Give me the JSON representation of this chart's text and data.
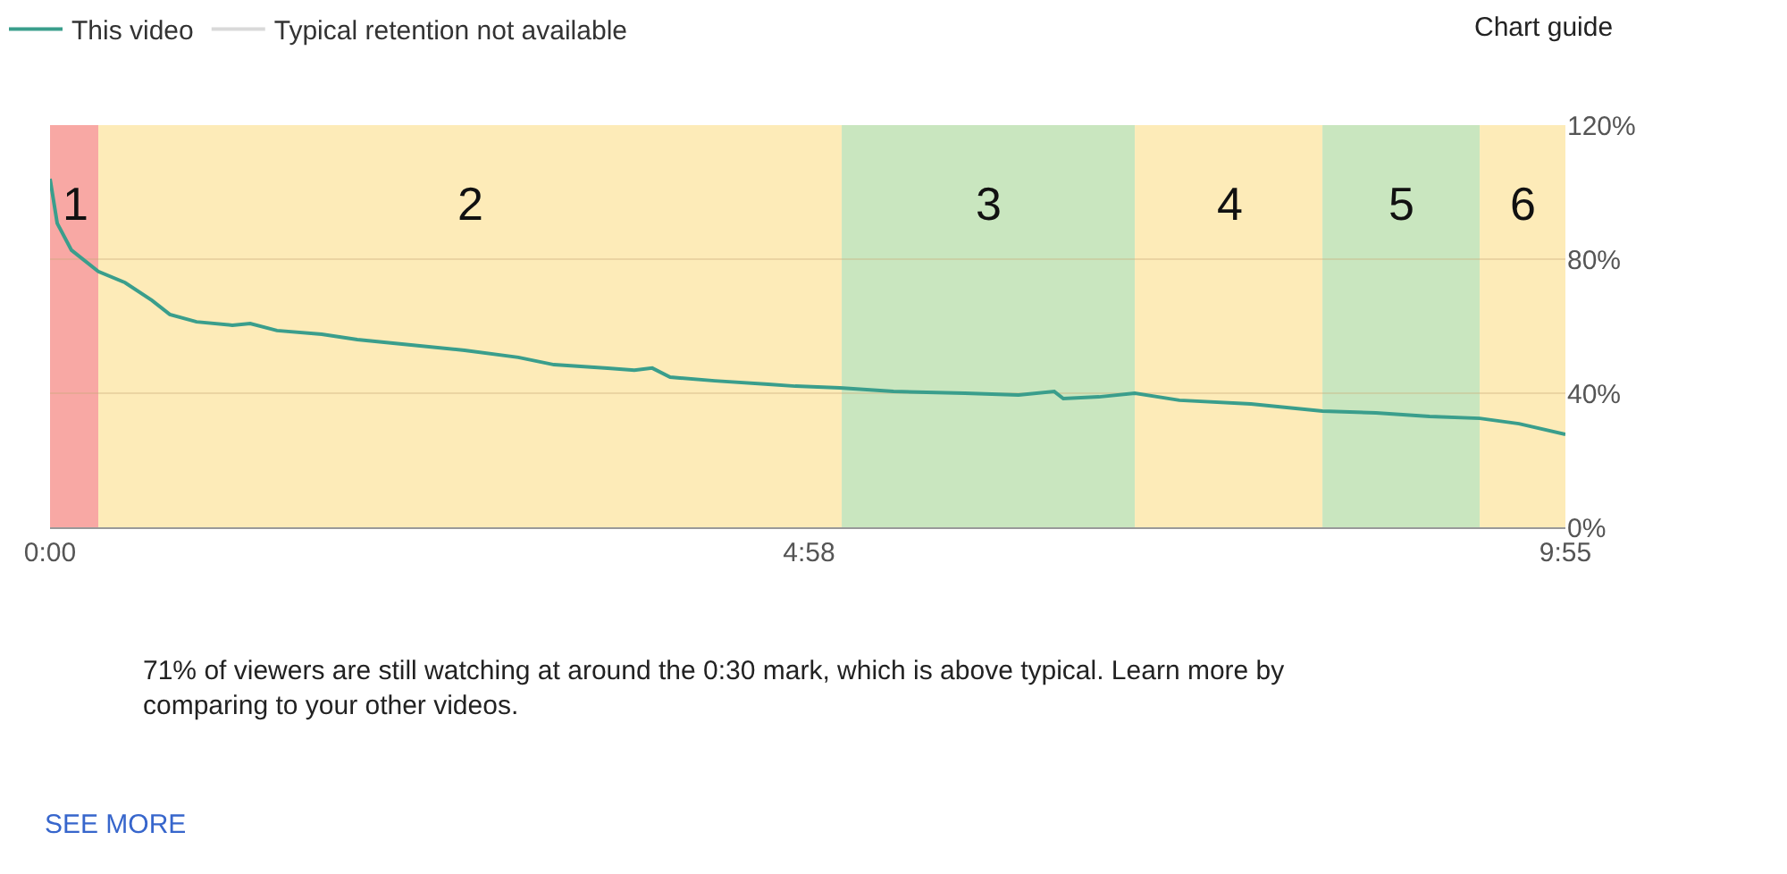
{
  "chart_data": {
    "type": "line",
    "x": [
      0,
      0.047,
      0.14,
      0.316,
      0.491,
      0.667,
      0.784,
      0.959,
      1.193,
      1.31,
      1.485,
      1.778,
      2.011,
      2.362,
      2.713,
      3.064,
      3.298,
      3.649,
      3.824,
      3.941,
      4.058,
      4.35,
      4.701,
      4.877,
      5.169,
      5.52,
      5.987,
      6.338,
      6.572,
      6.631,
      6.864,
      7.099,
      7.391,
      7.859,
      8.327,
      8.677,
      9.028,
      9.356,
      9.613,
      9.917
    ],
    "series": [
      {
        "name": "This video",
        "color": "#3a9e8c",
        "values": [
          104,
          90.7,
          82.7,
          76.3,
          73,
          67.7,
          63.5,
          61.3,
          60.3,
          60.8,
          58.7,
          57.6,
          56,
          54.4,
          52.8,
          50.7,
          48.5,
          47.5,
          46.9,
          47.5,
          44.8,
          43.7,
          42.7,
          42.1,
          41.6,
          40.5,
          40,
          39.5,
          40.5,
          38.4,
          38.9,
          40,
          37.9,
          36.8,
          34.7,
          34.1,
          33.1,
          32.5,
          30.9,
          27.7
        ]
      },
      {
        "name": "Typical retention not available",
        "color": "#d9d9d9",
        "values": [
          null,
          null,
          null,
          null,
          null,
          null,
          null,
          null,
          null,
          null,
          null,
          null,
          null,
          null,
          null,
          null,
          null,
          null,
          null,
          null,
          null,
          null,
          null,
          null,
          null,
          null,
          null,
          null,
          null,
          null,
          null,
          null,
          null,
          null,
          null,
          null,
          null,
          null,
          null,
          null
        ]
      }
    ],
    "xlim": [
      0,
      9.917
    ],
    "xticks": [
      {
        "value": 0,
        "label": "0:00"
      },
      {
        "value": 4.967,
        "label": "4:58"
      },
      {
        "value": 9.917,
        "label": "9:55"
      }
    ],
    "ylim": [
      0,
      120
    ],
    "yticks": [
      {
        "value": 0,
        "label": "0%"
      },
      {
        "value": 40,
        "label": "40%"
      },
      {
        "value": 80,
        "label": "80%"
      },
      {
        "value": 120,
        "label": "120%"
      }
    ],
    "bands": [
      {
        "axis": "x",
        "from": 0,
        "to": 0.316,
        "label": "1",
        "color": "#f8a8a4"
      },
      {
        "axis": "x",
        "from": 0.316,
        "to": 5.181,
        "label": "2",
        "color": "#fdebb8"
      },
      {
        "axis": "x",
        "from": 5.181,
        "to": 7.099,
        "label": "3",
        "color": "#c9e6bf"
      },
      {
        "axis": "x",
        "from": 7.099,
        "to": 8.327,
        "label": "4",
        "color": "#fdebb8"
      },
      {
        "axis": "x",
        "from": 8.327,
        "to": 9.356,
        "label": "5",
        "color": "#c9e6bf"
      },
      {
        "axis": "x",
        "from": 9.356,
        "to": 9.917,
        "label": "6",
        "color": "#fdebb8"
      }
    ],
    "annotations": [
      "Chart guide",
      "71% of viewers are still watching at around the 0:30 mark, which is above typical. Learn more by comparing to your other videos.",
      "SEE MORE"
    ],
    "grid": "y",
    "legend": "top left"
  }
}
